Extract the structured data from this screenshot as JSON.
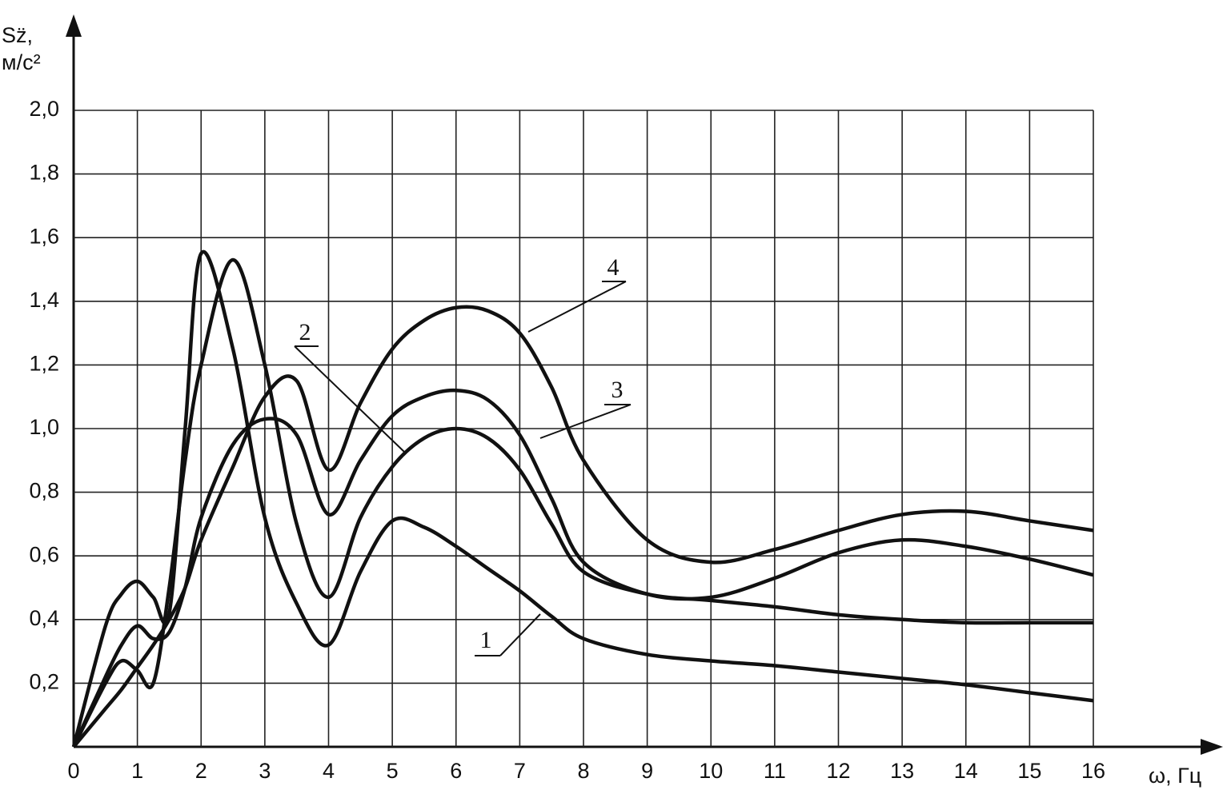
{
  "chart_data": {
    "type": "line",
    "y_label": "Sz̈,",
    "y_unit": "м/с²",
    "x_label": "ω, Гц",
    "x": [
      0,
      0.5,
      0.75,
      1,
      1.25,
      1.5,
      1.75,
      2,
      2.5,
      3,
      3.5,
      4,
      4.5,
      5,
      5.5,
      6,
      6.5,
      7,
      7.5,
      8,
      9,
      10,
      11,
      12,
      13,
      14,
      15,
      16
    ],
    "series": [
      {
        "name": "1",
        "color": "#111111",
        "values": [
          0,
          0.38,
          0.48,
          0.52,
          0.47,
          0.42,
          1.0,
          1.55,
          1.25,
          0.72,
          0.45,
          0.32,
          0.55,
          0.71,
          0.69,
          0.63,
          0.56,
          0.49,
          0.41,
          0.34,
          0.29,
          0.27,
          0.255,
          0.235,
          0.215,
          0.195,
          0.17,
          0.145
        ]
      },
      {
        "name": "2",
        "color": "#111111",
        "values": [
          0,
          0.2,
          0.27,
          0.24,
          0.2,
          0.5,
          0.9,
          1.2,
          1.53,
          1.2,
          0.7,
          0.47,
          0.72,
          0.88,
          0.97,
          1.0,
          0.97,
          0.87,
          0.7,
          0.55,
          0.48,
          0.46,
          0.44,
          0.415,
          0.4,
          0.39,
          0.39,
          0.39
        ]
      },
      {
        "name": "3",
        "color": "#111111",
        "values": [
          0,
          0.22,
          0.32,
          0.38,
          0.34,
          0.36,
          0.5,
          0.72,
          0.95,
          1.03,
          0.98,
          0.73,
          0.9,
          1.04,
          1.1,
          1.12,
          1.09,
          0.98,
          0.78,
          0.58,
          0.48,
          0.47,
          0.53,
          0.61,
          0.65,
          0.63,
          0.59,
          0.54
        ]
      },
      {
        "name": "4",
        "color": "#111111",
        "values": [
          0,
          0.12,
          0.18,
          0.25,
          0.32,
          0.4,
          0.5,
          0.65,
          0.88,
          1.1,
          1.15,
          0.87,
          1.08,
          1.25,
          1.34,
          1.38,
          1.37,
          1.3,
          1.13,
          0.9,
          0.65,
          0.58,
          0.62,
          0.68,
          0.73,
          0.74,
          0.71,
          0.68
        ]
      }
    ],
    "xlim": [
      0,
      16
    ],
    "xticks": [
      0,
      1,
      2,
      3,
      4,
      5,
      6,
      7,
      8,
      9,
      10,
      11,
      12,
      13,
      14,
      15,
      16
    ],
    "ylim": [
      0,
      2.0
    ],
    "yticks": [
      {
        "value": 0.2,
        "label": "0,2"
      },
      {
        "value": 0.4,
        "label": "0,4"
      },
      {
        "value": 0.6,
        "label": "0,6"
      },
      {
        "value": 0.8,
        "label": "0,8"
      },
      {
        "value": 1.0,
        "label": "1,0"
      },
      {
        "value": 1.2,
        "label": "1,2"
      },
      {
        "value": 1.4,
        "label": "1,4"
      },
      {
        "value": 1.6,
        "label": "1,6"
      },
      {
        "value": 1.8,
        "label": "1,8"
      },
      {
        "value": 2.0,
        "label": "2,0"
      }
    ],
    "grid": true
  }
}
